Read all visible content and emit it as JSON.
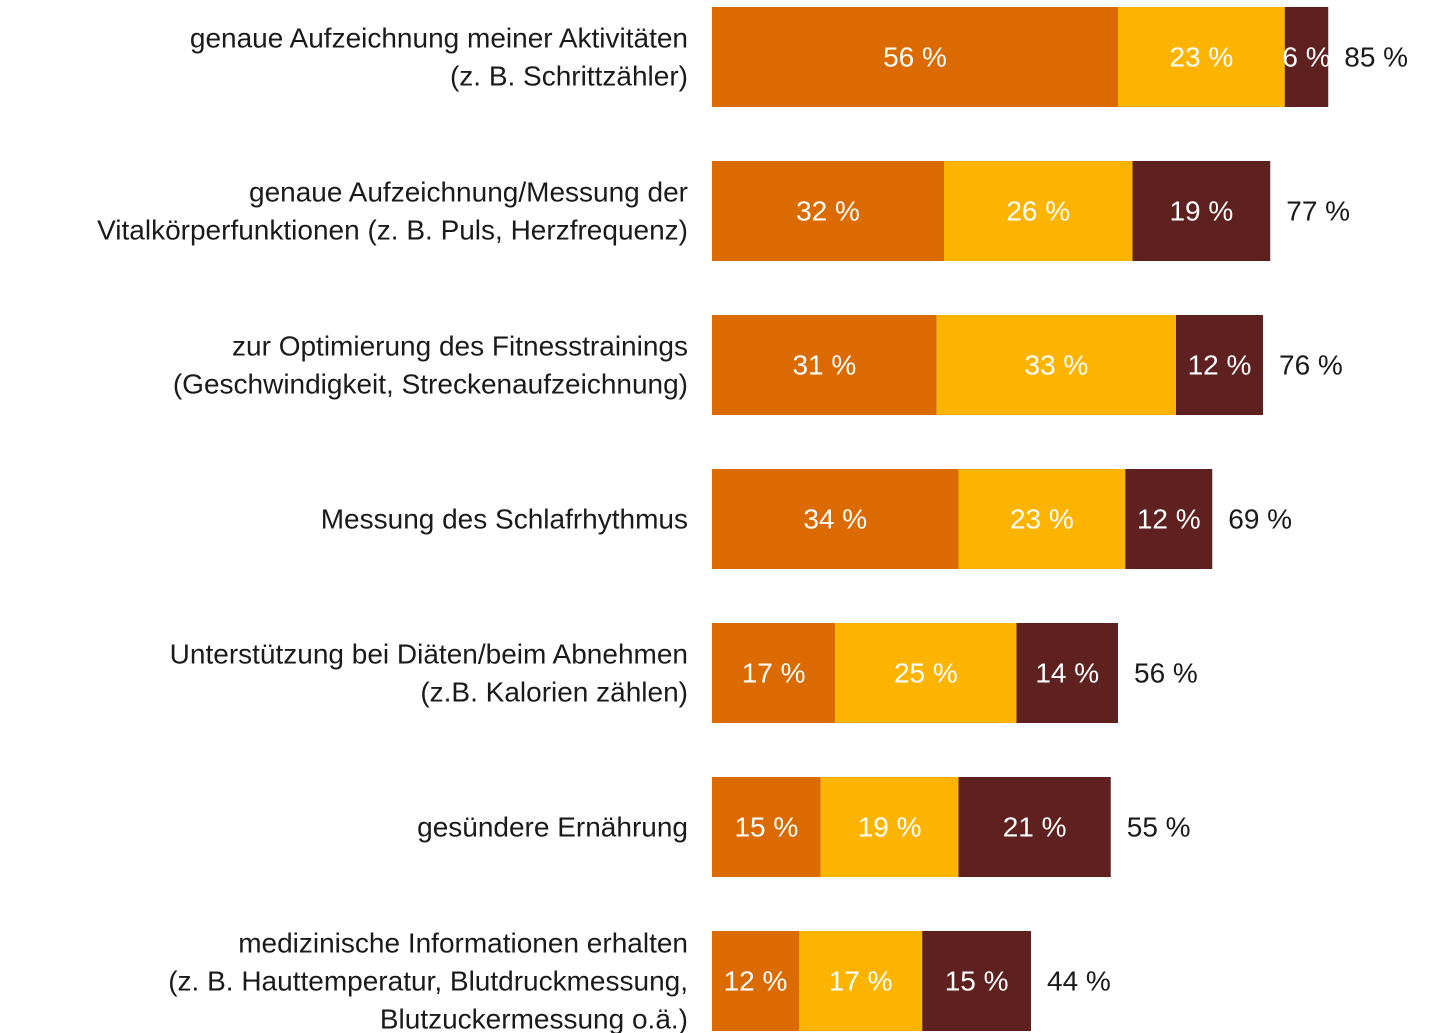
{
  "chart_data": {
    "type": "stacked-bar-horizontal",
    "categories": [
      [
        "genaue Aufzeichnung meiner Aktivitäten",
        "(z. B. Schrittzähler)"
      ],
      [
        "genaue Aufzeichnung/Messung der",
        "Vitalkörperfunktionen (z. B. Puls, Herzfrequenz)"
      ],
      [
        "zur Optimierung des Fitnesstrainings",
        "(Geschwindigkeit, Streckenaufzeichnung)"
      ],
      [
        "Messung des Schlafrhythmus"
      ],
      [
        "Unterstützung bei Diäten/beim Abnehmen",
        "(z.B. Kalorien zählen)"
      ],
      [
        "gesündere Ernährung"
      ],
      [
        "medizinische Informationen erhalten",
        "(z. B. Hauttemperatur, Blutdruckmessung,",
        "Blutzuckermessung o.ä.)"
      ]
    ],
    "series": [
      {
        "color": "#db6b00",
        "values": [
          56,
          32,
          31,
          34,
          17,
          15,
          12
        ],
        "value_labels": [
          "56 %",
          "32 %",
          "31 %",
          "34 %",
          "17 %",
          "15 %",
          "12 %"
        ]
      },
      {
        "color": "#fdb400",
        "values": [
          23,
          26,
          33,
          23,
          25,
          19,
          17
        ],
        "value_labels": [
          "23 %",
          "26 %",
          "33 %",
          "23 %",
          "25 %",
          "19 %",
          "17 %"
        ]
      },
      {
        "color": "#5f2020",
        "values": [
          6,
          19,
          12,
          12,
          14,
          21,
          15
        ],
        "value_labels": [
          "6 %",
          "19 %",
          "12 %",
          "12 %",
          "14 %",
          "21 %",
          "15 %"
        ]
      }
    ],
    "totals": [
      85,
      77,
      76,
      69,
      56,
      55,
      44
    ],
    "total_labels": [
      "85 %",
      "77 %",
      "76 %",
      "69 %",
      "56 %",
      "55 %",
      "44 %"
    ],
    "xlim": [
      0,
      100
    ]
  }
}
